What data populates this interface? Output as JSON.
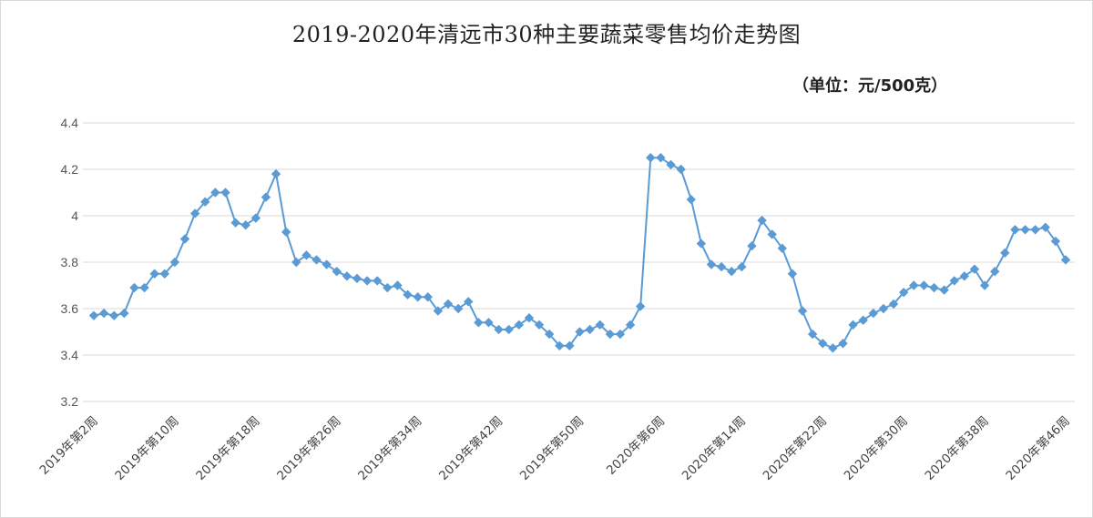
{
  "chart_data": {
    "type": "line",
    "title": "2019-2020年清远市30种主要蔬菜零售均价走势图",
    "unit_label": "（单位：元/500克）",
    "ylim": [
      3.2,
      4.4
    ],
    "yticks": [
      3.2,
      3.4,
      3.6,
      3.8,
      4,
      4.2,
      4.4
    ],
    "grid": true,
    "legend": "none",
    "line_color": "#5b9bd5",
    "tick_labels_x": [
      "2019年第2周",
      "2019年第10周",
      "2019年第18周",
      "2019年第26周",
      "2019年第34周",
      "2019年第42周",
      "2019年第50周",
      "2020年第6周",
      "2020年第14周",
      "2020年第22周",
      "2020年第30周",
      "2020年第38周",
      "2020年第46周"
    ],
    "series": [
      {
        "values": [
          3.57,
          3.58,
          3.57,
          3.58,
          3.69,
          3.69,
          3.75,
          3.75,
          3.8,
          3.9,
          4.01,
          4.06,
          4.1,
          4.1,
          3.97,
          3.96,
          3.99,
          4.08,
          4.18,
          3.93,
          3.8,
          3.83,
          3.81,
          3.79,
          3.76,
          3.74,
          3.73,
          3.72,
          3.72,
          3.69,
          3.7,
          3.66,
          3.65,
          3.65,
          3.59,
          3.62,
          3.6,
          3.63,
          3.54,
          3.54,
          3.51,
          3.51,
          3.53,
          3.56,
          3.53,
          3.49,
          3.44,
          3.44,
          3.5,
          3.51,
          3.53,
          3.49,
          3.49,
          3.53,
          3.61,
          4.25,
          4.25,
          4.22,
          4.2,
          4.07,
          3.88,
          3.79,
          3.78,
          3.76,
          3.78,
          3.87,
          3.98,
          3.92,
          3.86,
          3.75,
          3.59,
          3.49,
          3.45,
          3.43,
          3.45,
          3.53,
          3.55,
          3.58,
          3.6,
          3.62,
          3.67,
          3.7,
          3.7,
          3.69,
          3.68,
          3.72,
          3.74,
          3.77,
          3.7,
          3.76,
          3.84,
          3.94,
          3.94,
          3.94,
          3.95,
          3.89,
          3.81
        ]
      }
    ]
  }
}
